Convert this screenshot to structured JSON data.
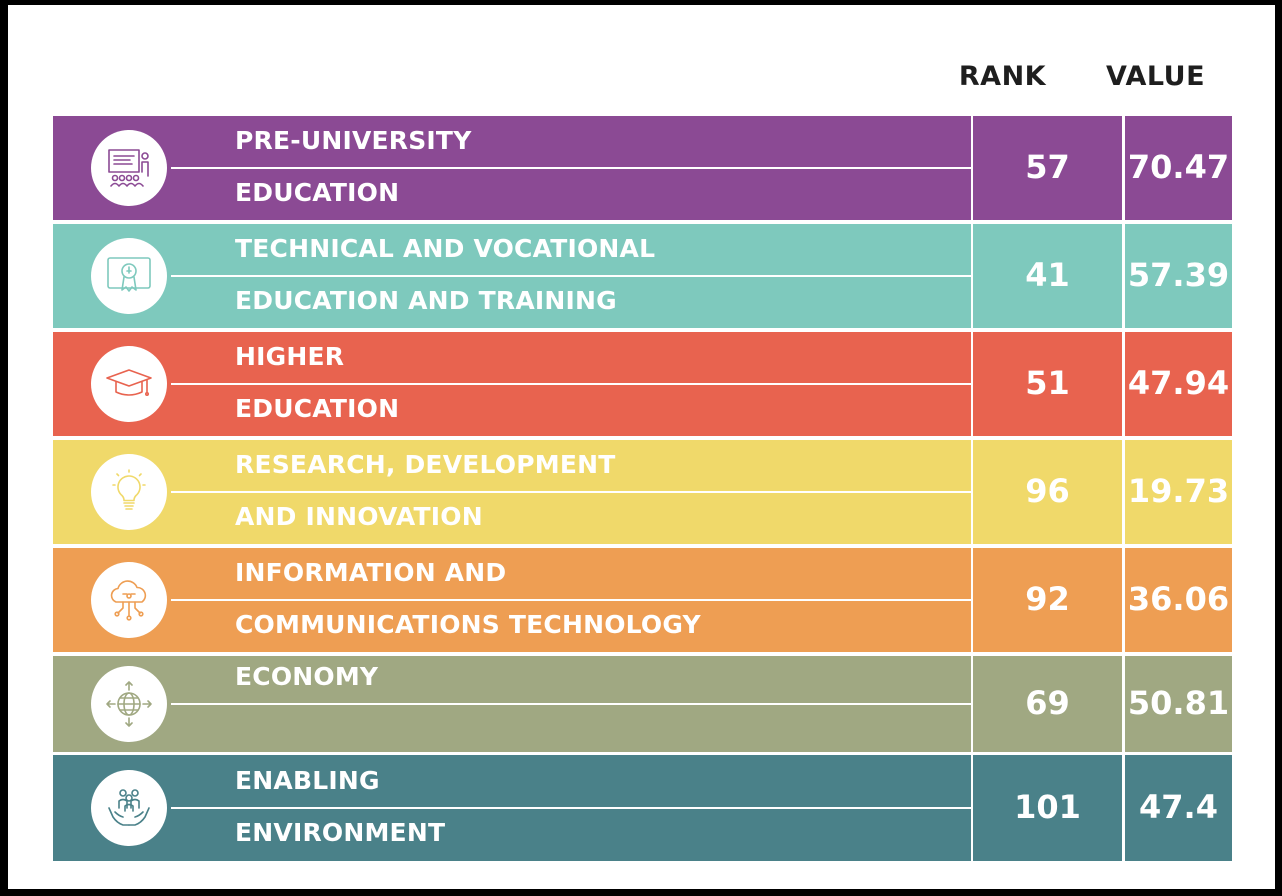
{
  "chart_data": {
    "type": "table",
    "columns": [
      "RANK",
      "VALUE"
    ],
    "rows": [
      {
        "label_line1": "PRE-UNIVERSITY",
        "label_line2": "EDUCATION",
        "rank": "57",
        "value": "70.47",
        "color": "#8b4a94",
        "icon": "classroom-presentation-icon"
      },
      {
        "label_line1": "TECHNICAL AND VOCATIONAL",
        "label_line2": "EDUCATION AND TRAINING",
        "rank": "41",
        "value": "57.39",
        "color": "#7ec9bd",
        "icon": "certificate-icon"
      },
      {
        "label_line1": "HIGHER",
        "label_line2": "EDUCATION",
        "rank": "51",
        "value": "47.94",
        "color": "#e8634f",
        "icon": "graduation-cap-icon"
      },
      {
        "label_line1": "RESEARCH, DEVELOPMENT",
        "label_line2": "AND INNOVATION",
        "rank": "96",
        "value": "19.73",
        "color": "#f0d96a",
        "icon": "lightbulb-icon"
      },
      {
        "label_line1": "INFORMATION AND",
        "label_line2": "COMMUNICATIONS TECHNOLOGY",
        "rank": "92",
        "value": "36.06",
        "color": "#ee9e53",
        "icon": "cloud-network-icon"
      },
      {
        "label_line1": "ECONOMY",
        "label_line2": "",
        "rank": "69",
        "value": "50.81",
        "color": "#a0a882",
        "icon": "globe-arrows-icon"
      },
      {
        "label_line1": "ENABLING",
        "label_line2": "ENVIRONMENT",
        "rank": "101",
        "value": "47.4",
        "color": "#4a8189",
        "icon": "hands-people-icon"
      }
    ]
  }
}
